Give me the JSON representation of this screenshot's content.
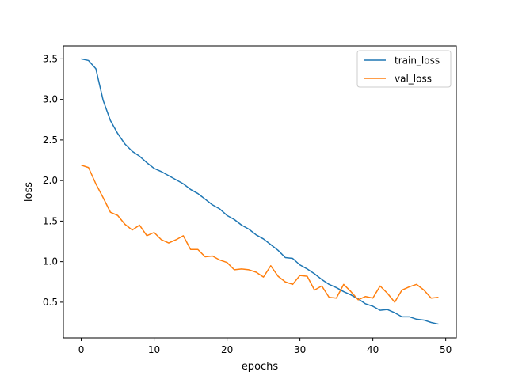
{
  "chart_data": {
    "type": "line",
    "title": "",
    "xlabel": "epochs",
    "ylabel": "loss",
    "xlim": [
      -2.45,
      51.45
    ],
    "ylim": [
      0.06,
      3.66
    ],
    "xticks": [
      0,
      10,
      20,
      30,
      40,
      50
    ],
    "yticks": [
      0.5,
      1.0,
      1.5,
      2.0,
      2.5,
      3.0,
      3.5
    ],
    "xtick_labels": [
      "0",
      "10",
      "20",
      "30",
      "40",
      "50"
    ],
    "ytick_labels": [
      "0.5",
      "1.0",
      "1.5",
      "2.0",
      "2.5",
      "3.0",
      "3.5"
    ],
    "grid": false,
    "legend_position": "top-right",
    "x": [
      0,
      1,
      2,
      3,
      4,
      5,
      6,
      7,
      8,
      9,
      10,
      11,
      12,
      13,
      14,
      15,
      16,
      17,
      18,
      19,
      20,
      21,
      22,
      23,
      24,
      25,
      26,
      27,
      28,
      29,
      30,
      31,
      32,
      33,
      34,
      35,
      36,
      37,
      38,
      39,
      40,
      41,
      42,
      43,
      44,
      45,
      46,
      47,
      48,
      49
    ],
    "series": [
      {
        "name": "train_loss",
        "color": "#1f77b4",
        "values": [
          3.5,
          3.48,
          3.38,
          2.99,
          2.74,
          2.58,
          2.45,
          2.36,
          2.3,
          2.22,
          2.15,
          2.11,
          2.06,
          2.01,
          1.96,
          1.89,
          1.84,
          1.77,
          1.7,
          1.65,
          1.57,
          1.52,
          1.45,
          1.4,
          1.33,
          1.28,
          1.21,
          1.14,
          1.05,
          1.04,
          0.96,
          0.91,
          0.85,
          0.78,
          0.72,
          0.68,
          0.63,
          0.59,
          0.54,
          0.48,
          0.45,
          0.4,
          0.41,
          0.37,
          0.32,
          0.32,
          0.29,
          0.28,
          0.25,
          0.23
        ]
      },
      {
        "name": "val_loss",
        "color": "#ff7f0e",
        "values": [
          2.19,
          2.16,
          1.96,
          1.79,
          1.61,
          1.57,
          1.46,
          1.39,
          1.45,
          1.32,
          1.36,
          1.27,
          1.23,
          1.27,
          1.32,
          1.15,
          1.15,
          1.06,
          1.07,
          1.02,
          0.99,
          0.9,
          0.91,
          0.9,
          0.87,
          0.81,
          0.95,
          0.82,
          0.75,
          0.72,
          0.83,
          0.82,
          0.65,
          0.7,
          0.56,
          0.55,
          0.72,
          0.63,
          0.53,
          0.57,
          0.55,
          0.7,
          0.61,
          0.5,
          0.65,
          0.69,
          0.72,
          0.65,
          0.55,
          0.56
        ]
      }
    ]
  }
}
